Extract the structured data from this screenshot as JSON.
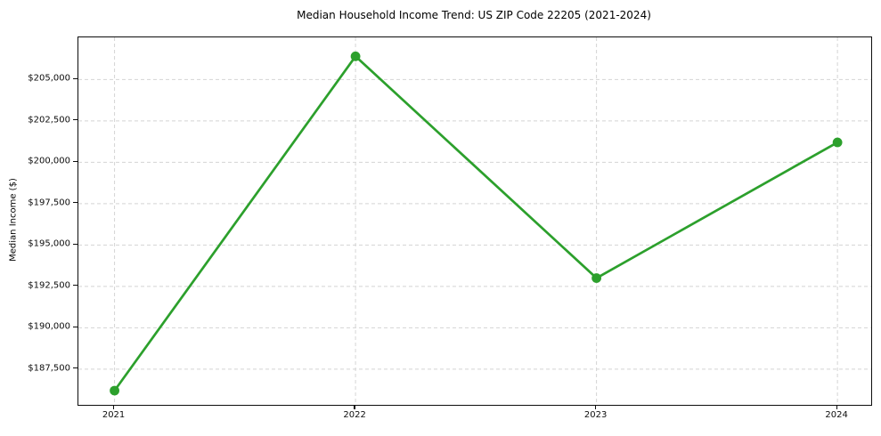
{
  "figure": {
    "background": "#ffffff"
  },
  "chart_data": {
    "type": "line",
    "title": "Median Household Income Trend: US ZIP Code 22205 (2021-2024)",
    "xlabel": "",
    "ylabel": "Median Income ($)",
    "x": [
      2021,
      2022,
      2023,
      2024
    ],
    "x_tick_labels": [
      "2021",
      "2022",
      "2023",
      "2024"
    ],
    "values": [
      186200,
      206400,
      193000,
      201200
    ],
    "yticks": [
      187500,
      190000,
      192500,
      195000,
      197500,
      200000,
      202500,
      205000
    ],
    "y_tick_labels": [
      "$187,500",
      "$190,000",
      "$192,500",
      "$195,000",
      "$197,500",
      "$200,000",
      "$202,500",
      "$205,000"
    ],
    "xlim": [
      2020.85,
      2024.14
    ],
    "ylim": [
      185340,
      207545
    ],
    "grid": true,
    "grid_style": "dashed",
    "grid_color": "#d4d4d4",
    "legend": "none",
    "line_color": "#2ca02c",
    "marker": "circle",
    "marker_radius": 5.4,
    "line_width": 2.7,
    "axis_color": "#0d0d0d",
    "text_color": "#0d0d0d"
  }
}
